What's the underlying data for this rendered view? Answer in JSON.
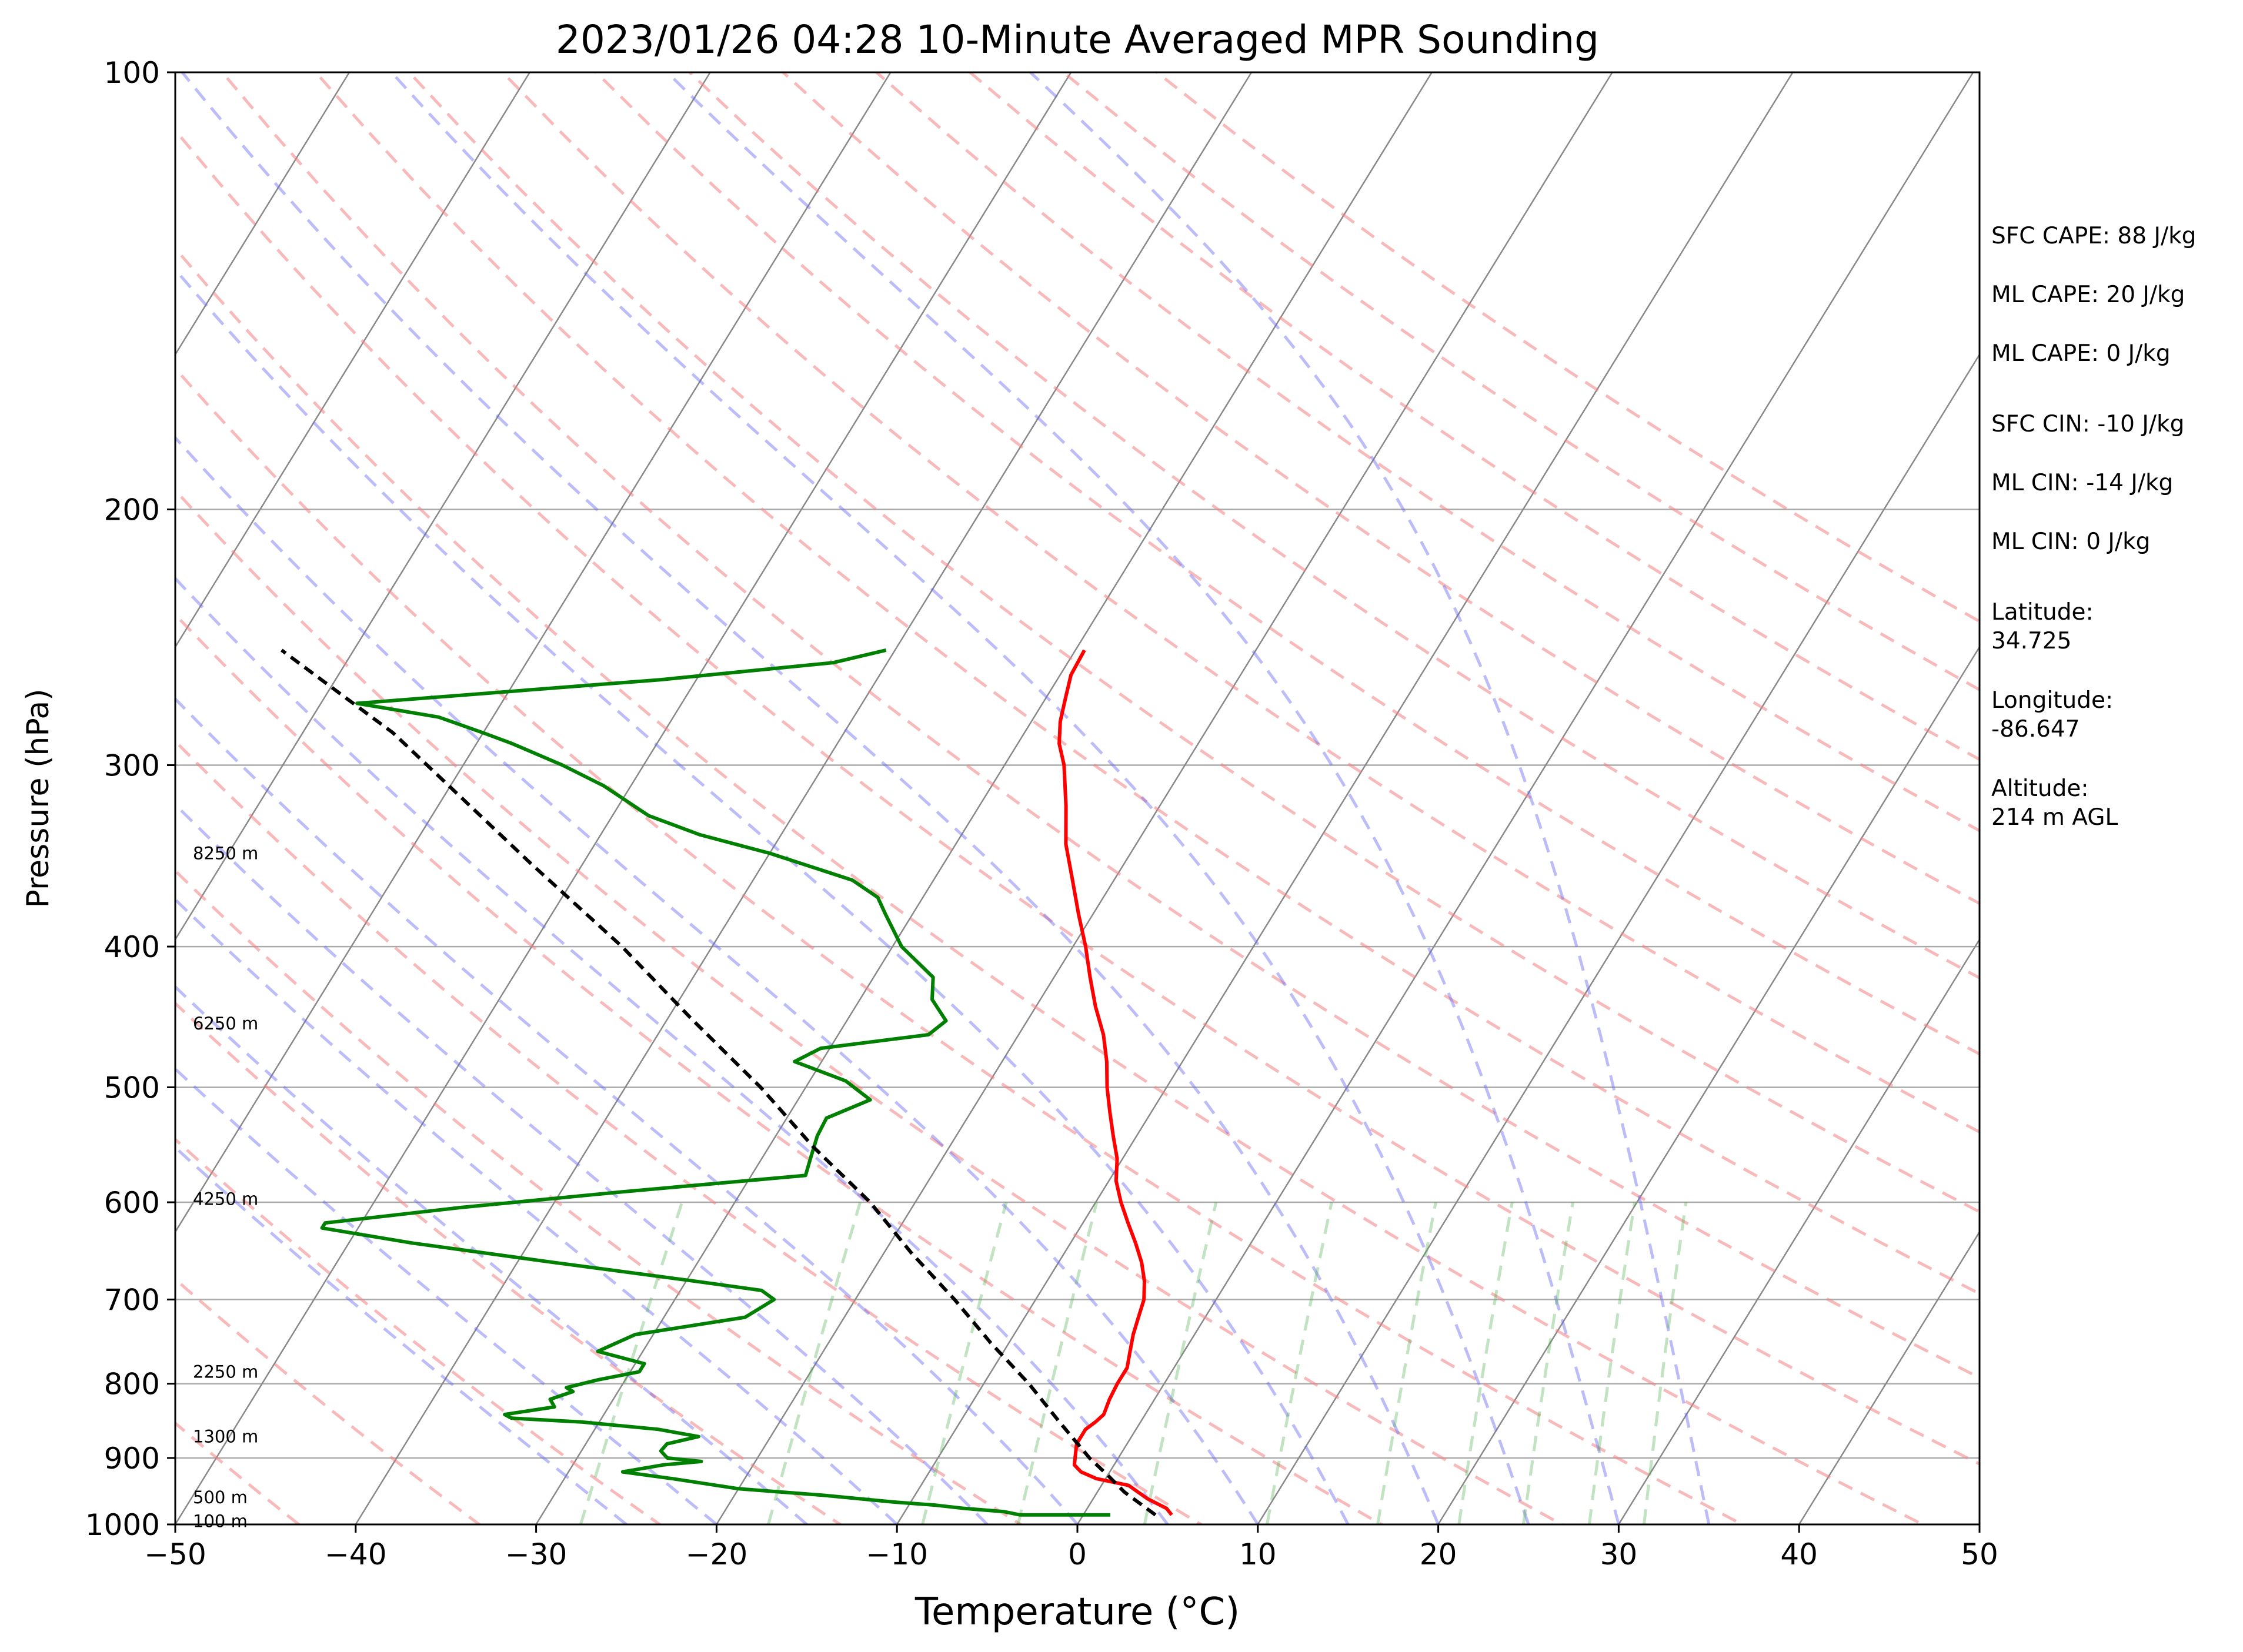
{
  "chart_data": {
    "type": "line",
    "title": "2023/01/26 04:28 10-Minute Averaged MPR Sounding",
    "xlabel": "Temperature (°C)",
    "ylabel": "Pressure (hPa)",
    "xlim": [
      -50,
      50
    ],
    "ylim": [
      1000,
      100
    ],
    "y_scale": "log",
    "skew_t": true,
    "x_ticks": [
      "−50",
      "−40",
      "−30",
      "−20",
      "−10",
      "0",
      "10",
      "20",
      "30",
      "40",
      "50"
    ],
    "y_ticks": [
      "100",
      "200",
      "300",
      "400",
      "500",
      "600",
      "700",
      "800",
      "900",
      "1000"
    ],
    "y_tick_values": [
      100,
      200,
      300,
      400,
      500,
      600,
      700,
      800,
      900,
      1000
    ],
    "grid": true,
    "series": [
      {
        "role": "temperature",
        "color": "#ff0000",
        "points": [
          [
            985,
            4.9
          ],
          [
            975,
            4.4
          ],
          [
            960,
            3.0
          ],
          [
            940,
            1.5
          ],
          [
            930,
            -0.5
          ],
          [
            920,
            -1.6
          ],
          [
            910,
            -2.2
          ],
          [
            895,
            -2.5
          ],
          [
            880,
            -2.8
          ],
          [
            860,
            -2.8
          ],
          [
            850,
            -2.5
          ],
          [
            840,
            -2.3
          ],
          [
            820,
            -2.5
          ],
          [
            800,
            -2.6
          ],
          [
            780,
            -2.6
          ],
          [
            760,
            -3.0
          ],
          [
            740,
            -3.4
          ],
          [
            720,
            -3.7
          ],
          [
            700,
            -4.0
          ],
          [
            680,
            -4.6
          ],
          [
            660,
            -5.4
          ],
          [
            640,
            -6.4
          ],
          [
            620,
            -7.5
          ],
          [
            600,
            -8.6
          ],
          [
            580,
            -9.6
          ],
          [
            560,
            -10.3
          ],
          [
            540,
            -11.3
          ],
          [
            520,
            -12.3
          ],
          [
            500,
            -13.3
          ],
          [
            480,
            -14.2
          ],
          [
            460,
            -15.3
          ],
          [
            440,
            -16.7
          ],
          [
            420,
            -18.0
          ],
          [
            400,
            -19.3
          ],
          [
            380,
            -20.8
          ],
          [
            360,
            -22.3
          ],
          [
            340,
            -23.9
          ],
          [
            320,
            -25.2
          ],
          [
            300,
            -26.7
          ],
          [
            290,
            -27.7
          ],
          [
            280,
            -28.4
          ],
          [
            270,
            -28.9
          ],
          [
            260,
            -29.4
          ],
          [
            250,
            -29.5
          ]
        ]
      },
      {
        "role": "dewpoint",
        "color": "#008000",
        "points": [
          [
            985,
            1.5
          ],
          [
            985,
            -3.5
          ],
          [
            980,
            -4.5
          ],
          [
            975,
            -6.8
          ],
          [
            970,
            -8.5
          ],
          [
            965,
            -11.0
          ],
          [
            955,
            -15.0
          ],
          [
            945,
            -20.0
          ],
          [
            930,
            -24.0
          ],
          [
            920,
            -27.0
          ],
          [
            910,
            -25.0
          ],
          [
            905,
            -23.0
          ],
          [
            900,
            -25.0
          ],
          [
            890,
            -25.6
          ],
          [
            880,
            -25.5
          ],
          [
            870,
            -24.0
          ],
          [
            860,
            -26.5
          ],
          [
            850,
            -31.0
          ],
          [
            845,
            -35.0
          ],
          [
            840,
            -35.5
          ],
          [
            830,
            -33.0
          ],
          [
            820,
            -33.5
          ],
          [
            810,
            -32.5
          ],
          [
            805,
            -33.0
          ],
          [
            795,
            -31.5
          ],
          [
            785,
            -29.5
          ],
          [
            775,
            -29.5
          ],
          [
            760,
            -32.5
          ],
          [
            740,
            -31.0
          ],
          [
            720,
            -25.5
          ],
          [
            710,
            -25.0
          ],
          [
            700,
            -24.5
          ],
          [
            690,
            -25.5
          ],
          [
            680,
            -29.5
          ],
          [
            660,
            -38.0
          ],
          [
            640,
            -46.5
          ],
          [
            625,
            -52.0
          ],
          [
            620,
            -52.0
          ],
          [
            605,
            -45.0
          ],
          [
            590,
            -36.5
          ],
          [
            575,
            -27.0
          ],
          [
            560,
            -27.3
          ],
          [
            540,
            -27.7
          ],
          [
            525,
            -27.8
          ],
          [
            510,
            -26.0
          ],
          [
            495,
            -28.0
          ],
          [
            480,
            -31.5
          ],
          [
            470,
            -30.5
          ],
          [
            460,
            -25.0
          ],
          [
            450,
            -24.5
          ],
          [
            435,
            -26.0
          ],
          [
            420,
            -26.7
          ],
          [
            400,
            -29.5
          ],
          [
            380,
            -31.5
          ],
          [
            370,
            -32.5
          ],
          [
            360,
            -34.5
          ],
          [
            345,
            -40.0
          ],
          [
            335,
            -44.5
          ],
          [
            325,
            -48.0
          ],
          [
            310,
            -51.5
          ],
          [
            300,
            -54.5
          ],
          [
            290,
            -58.0
          ],
          [
            285,
            -60.0
          ],
          [
            278,
            -63.0
          ],
          [
            272,
            -68.0
          ],
          [
            262,
            -52.0
          ],
          [
            255,
            -43.0
          ],
          [
            250,
            -40.5
          ]
        ]
      },
      {
        "role": "parcel",
        "color": "#000000",
        "dashed": true,
        "points": [
          [
            985,
            4.0
          ],
          [
            950,
            1.5
          ],
          [
            925,
            0.0
          ],
          [
            900,
            -1.6
          ],
          [
            850,
            -4.5
          ],
          [
            800,
            -7.5
          ],
          [
            750,
            -11.0
          ],
          [
            700,
            -14.5
          ],
          [
            650,
            -18.5
          ],
          [
            600,
            -22.5
          ],
          [
            550,
            -27.5
          ],
          [
            500,
            -32.5
          ],
          [
            450,
            -38.5
          ],
          [
            400,
            -45.0
          ],
          [
            350,
            -53.0
          ],
          [
            300,
            -62.0
          ],
          [
            285,
            -65.0
          ],
          [
            265,
            -70.0
          ],
          [
            250,
            -74.0
          ]
        ]
      }
    ],
    "height_labels": [
      {
        "text": "8250 m",
        "p": 345
      },
      {
        "text": "6250 m",
        "p": 452
      },
      {
        "text": "4250 m",
        "p": 597
      },
      {
        "text": "2250 m",
        "p": 785
      },
      {
        "text": "1300 m",
        "p": 870
      },
      {
        "text": "500 m",
        "p": 958
      },
      {
        "text": "100 m",
        "p": 995
      }
    ],
    "dry_adiabat_thetas_k": [
      230,
      240,
      250,
      260,
      270,
      280,
      290,
      300,
      310,
      320,
      330,
      340,
      350,
      360,
      370,
      380,
      390,
      400,
      410,
      420,
      430,
      440
    ],
    "moist_adiabat_starts_c": [
      -25,
      -20,
      -15,
      -10,
      -5,
      0,
      5,
      10,
      15,
      20,
      25,
      30,
      35
    ],
    "mixing_ratio_lines_gkg": [
      0.4,
      1,
      2,
      3,
      5,
      8,
      12,
      16,
      20,
      25,
      30
    ],
    "colors": {
      "temperature": "#ff0000",
      "dewpoint": "#008000",
      "parcel": "#000000",
      "isotherm": "#888888",
      "dry_adiabat": "#f08080",
      "moist_adiabat": "#6a6af0",
      "mixing_ratio": "#4caf50",
      "grid": "#aaaaaa"
    },
    "annotations": {
      "sfc_cape": "SFC CAPE: 88 J/kg",
      "ml_cape": "ML CAPE: 20 J/kg",
      "ml_cape_2": "ML CAPE: 0 J/kg",
      "sfc_cin": "SFC CIN: -10 J/kg",
      "ml_cin": "ML CIN: -14 J/kg",
      "ml_cin_2": "ML CIN: 0 J/kg",
      "latitude_label": "Latitude:",
      "latitude_value": "34.725",
      "longitude_label": "Longitude:",
      "longitude_value": "-86.647",
      "altitude_label": "Altitude:",
      "altitude_value": "214 m AGL"
    }
  }
}
